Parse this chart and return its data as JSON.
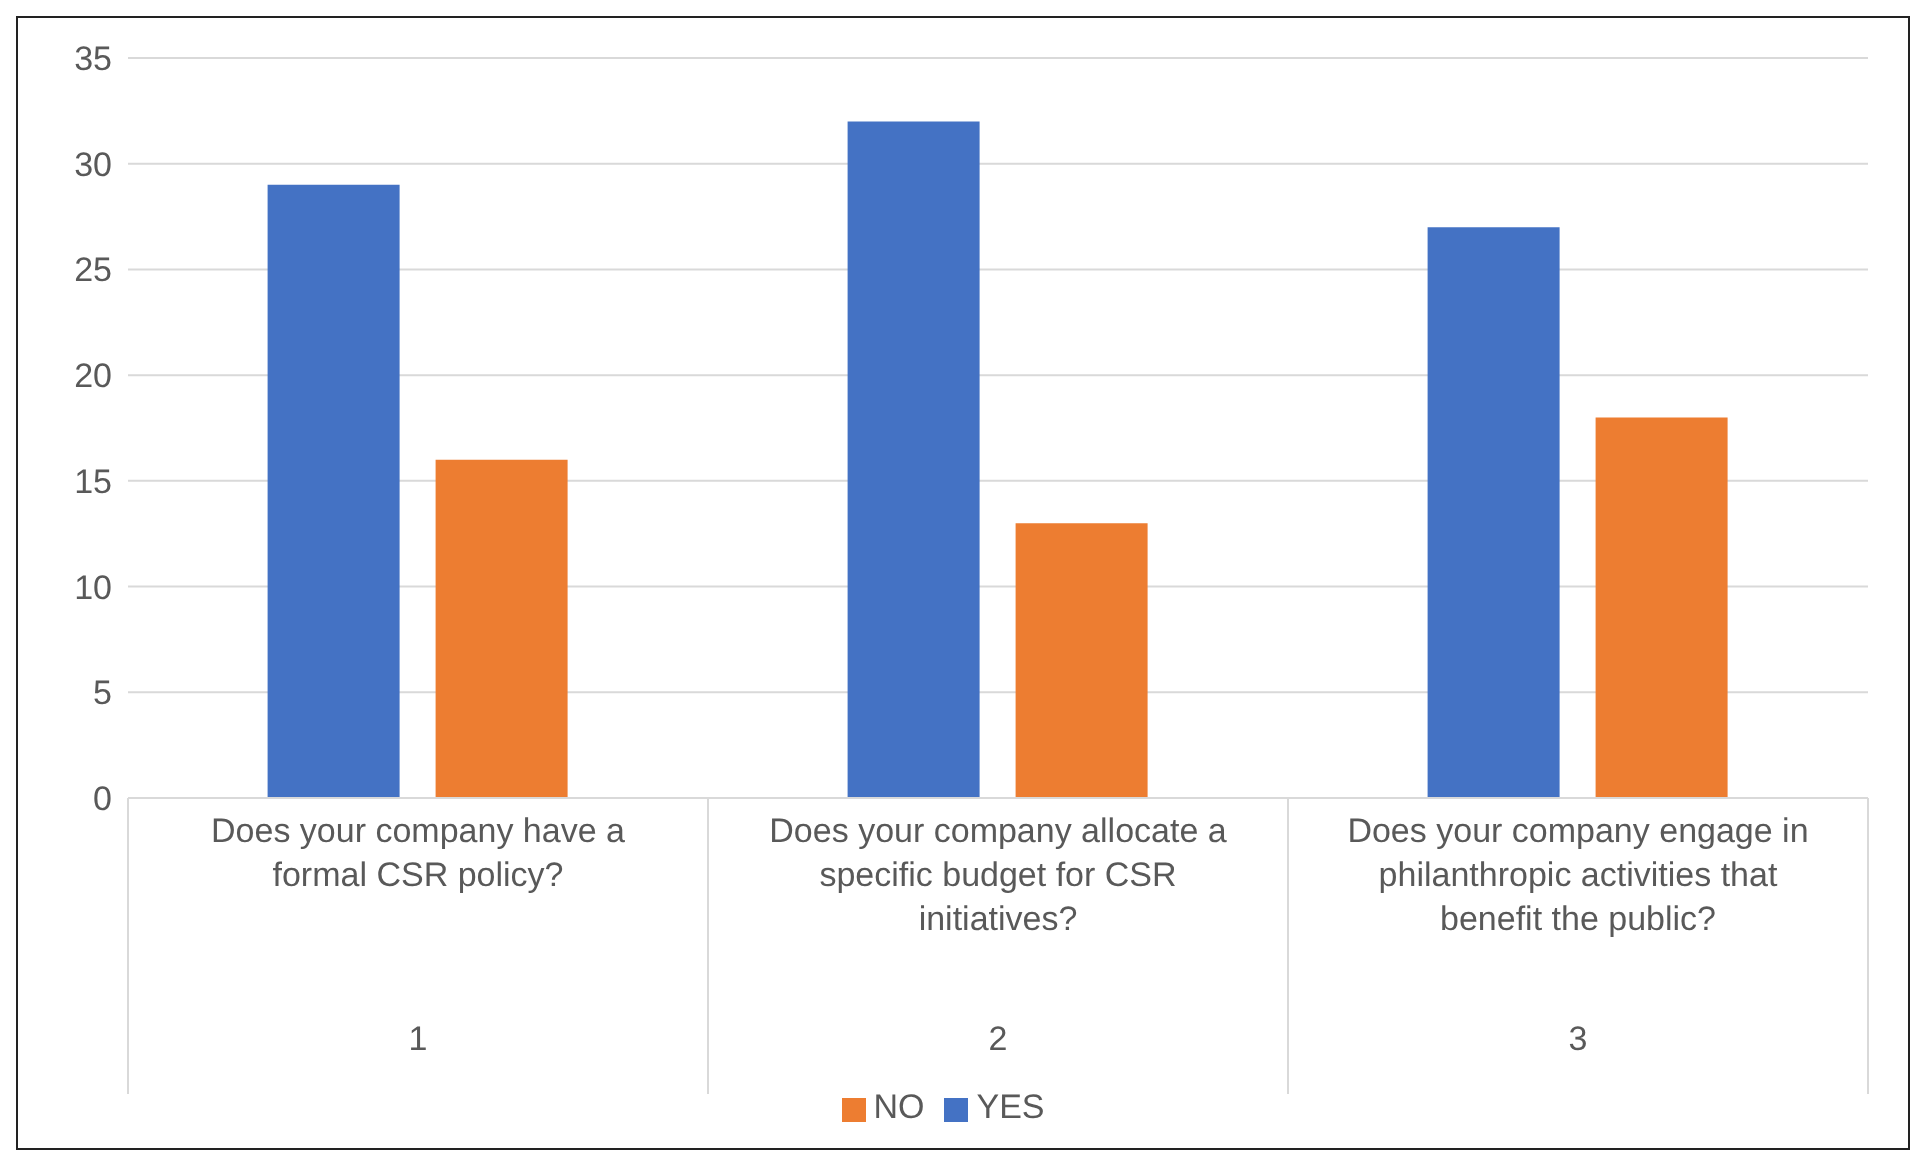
{
  "chart_data": {
    "type": "bar",
    "categories": [
      "Does your company have a formal CSR policy?",
      "Does your company allocate a specific budget for CSR initiatives?",
      "Does your company engage in philanthropic activities that benefit the public?"
    ],
    "series": [
      {
        "name": "YES",
        "color": "#4472c4",
        "values": [
          29,
          32,
          27
        ]
      },
      {
        "name": "NO",
        "color": "#ed7d31",
        "values": [
          16,
          13,
          18
        ]
      }
    ],
    "annotations": [
      "1",
      "2",
      "3"
    ],
    "ylim": [
      0,
      35
    ],
    "yticks": [
      0,
      5,
      10,
      15,
      20,
      25,
      30,
      35
    ],
    "grid": "y",
    "legend": "bottom"
  }
}
